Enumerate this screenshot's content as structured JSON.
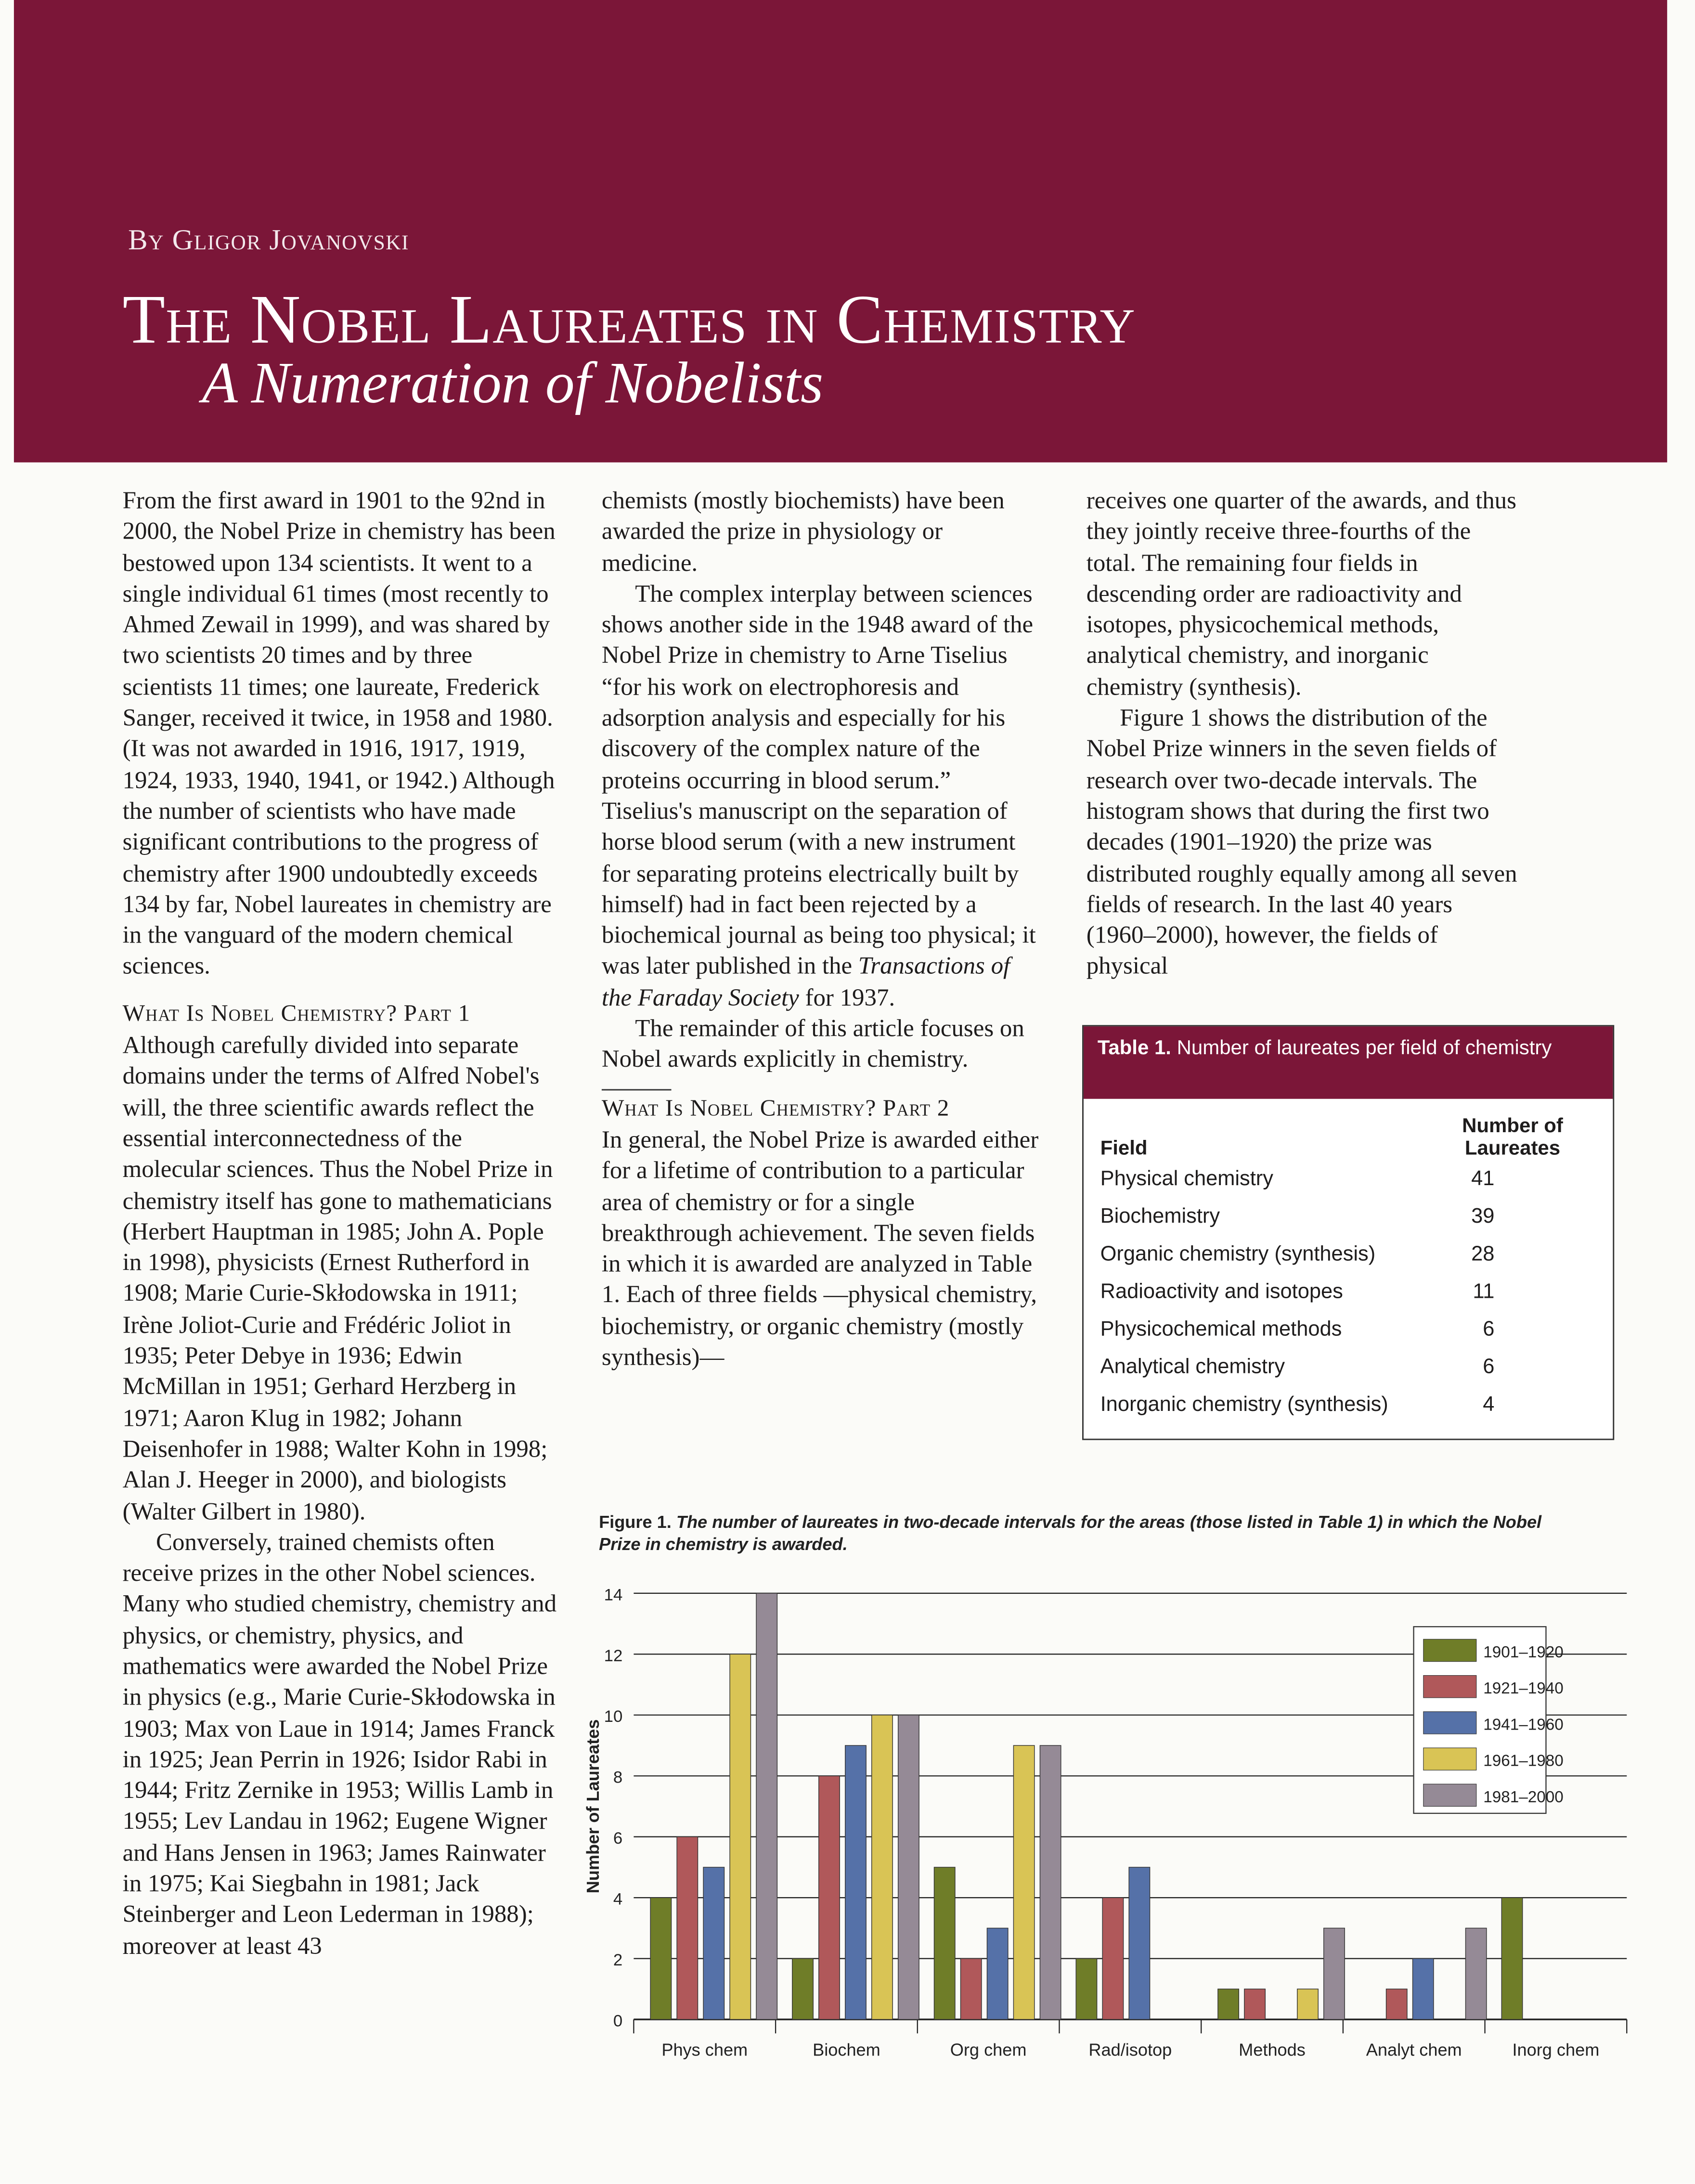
{
  "byline": "By Gligor Jovanovski",
  "title": "The Nobel Laureates in Chemistry",
  "subtitle": "A Numeration of Nobelists",
  "col1": {
    "p1": "From the first award in 1901 to the 92nd in 2000, the Nobel Prize in chemistry has been bestowed upon 134 scientists. It went to a single individual 61 times (most recently to Ahmed Zewail in 1999), and was shared by two scientists 20 times and by three scientists 11 times; one laureate, Frederick Sanger, received it twice, in 1958 and 1980. (It was not awarded in 1916, 1917, 1919, 1924, 1933, 1940, 1941, or 1942.) Although the number of scientists who have made significant contributions to the progress of chemistry after 1900 undoubtedly exceeds 134 by far, Nobel laureates in chemistry are in the vanguard of the modern chemical sciences.",
    "h1": "What Is Nobel Chemistry? Part 1",
    "p2": "Although carefully divided into separate domains under the terms of Alfred Nobel's will, the three scientific awards reflect the essential interconnectedness of the molecular sciences. Thus the Nobel Prize in chemistry itself has gone to mathematicians (Herbert Hauptman in 1985; John A. Pople in 1998), physicists (Ernest Rutherford in 1908; Marie Curie-Skłodowska in 1911; Irène Joliot-Curie and Frédéric Joliot in 1935; Peter Debye in 1936; Edwin McMillan in 1951; Gerhard Herzberg in 1971; Aaron Klug in 1982; Johann Deisenhofer in 1988; Walter Kohn in 1998; Alan J. Heeger in 2000), and biologists (Walter Gilbert in 1980).",
    "p3": "Conversely, trained chemists often receive prizes in the other Nobel sciences. Many who studied chemistry, chemistry and physics, or chemistry, physics, and mathematics were awarded the Nobel Prize in physics (e.g., Marie Curie-Skłodowska in 1903; Max von Laue in 1914; James Franck in 1925; Jean Perrin in 1926; Isidor Rabi in 1944; Fritz Zernike in 1953; Willis Lamb in 1955; Lev Landau in 1962; Eugene Wigner and Hans Jensen in 1963; James Rainwater in 1975; Kai Siegbahn in 1981; Jack Steinberger and Leon Lederman in 1988); moreover at least 43"
  },
  "col2": {
    "p1": "chemists (mostly biochemists) have been awarded the prize in physiology or medicine.",
    "p2": "The complex interplay between sciences shows another side in the 1948 award of the Nobel Prize in chemistry to Arne Tiselius “for his work on electrophoresis and adsorption analysis and especially for his discovery of the complex nature of the proteins occurring in blood serum.” Tiselius's manuscript on the separation of horse blood serum (with a new instrument for separating proteins electrically built by himself) had in fact been rejected by a biochemical journal as being too physical; it was later published in the ",
    "p2_italic": "Transactions of the Faraday Society",
    "p2_end": " for 1937.",
    "p3": "The remainder of this article focuses on Nobel awards explicitly in chemistry.",
    "h2": "What Is Nobel Chemistry? Part 2",
    "p4": "In general, the Nobel Prize is awarded either for a lifetime of contribution to a particular area of chemistry or for a single breakthrough achievement. The seven fields in which it is awarded are analyzed in Table 1. Each of three fields —physical chemistry, biochemistry, or organic chemistry (mostly synthesis)—"
  },
  "col3": {
    "p1": "receives one quarter of the awards, and thus they jointly receive three-fourths of the total. The remaining four fields in descending order are radioactivity and isotopes, physicochemical methods, analytical chemistry, and inorganic chemistry (synthesis).",
    "p2": "Figure 1 shows the distribution of the Nobel Prize winners in the seven fields of research over two-decade intervals. The histogram shows that during the first two decades (1901–1920) the prize was distributed roughly equally among all seven fields of research. In the last 40 years (1960–2000), however, the fields of physical"
  },
  "table1": {
    "label": "Table 1.",
    "caption": "Number of laureates per field of chemistry",
    "headers": [
      "Field",
      "Number of Laureates"
    ],
    "rows": [
      [
        "Physical chemistry",
        "41"
      ],
      [
        "Biochemistry",
        "39"
      ],
      [
        "Organic chemistry (synthesis)",
        "28"
      ],
      [
        "Radioactivity and isotopes",
        "11"
      ],
      [
        "Physicochemical methods",
        "6"
      ],
      [
        "Analytical chemistry",
        "6"
      ],
      [
        "Inorganic chemistry (synthesis)",
        "4"
      ]
    ]
  },
  "figure": {
    "label": "Figure 1.",
    "caption": "The number of laureates in two-decade intervals for the areas (those listed in Table 1) in which the Nobel Prize in chemistry is awarded."
  },
  "colors": {
    "banner": "#7b1638"
  },
  "chart_data": {
    "type": "bar",
    "title": "",
    "xlabel": "",
    "ylabel": "Number of Laureates",
    "ylim": [
      0,
      14
    ],
    "yticks": [
      0,
      2,
      4,
      6,
      8,
      10,
      12,
      14
    ],
    "grid": true,
    "legend": "top-right",
    "categories": [
      "Phys chem",
      "Biochem",
      "Org chem",
      "Rad/isotop",
      "Methods",
      "Analyt chem",
      "Inorg chem"
    ],
    "series": [
      {
        "name": "1901–1920",
        "color": "#6f7d28",
        "values": [
          4,
          2,
          5,
          2,
          1,
          0,
          4
        ]
      },
      {
        "name": "1921–1940",
        "color": "#b0585a",
        "values": [
          6,
          8,
          2,
          4,
          1,
          1,
          0
        ]
      },
      {
        "name": "1941–1960",
        "color": "#5571a8",
        "values": [
          5,
          9,
          3,
          5,
          0,
          2,
          0
        ]
      },
      {
        "name": "1961–1980",
        "color": "#d9c455",
        "values": [
          12,
          10,
          9,
          0,
          1,
          0,
          0
        ]
      },
      {
        "name": "1981–2000",
        "color": "#958a96",
        "values": [
          14,
          10,
          9,
          0,
          3,
          3,
          0
        ]
      }
    ]
  }
}
